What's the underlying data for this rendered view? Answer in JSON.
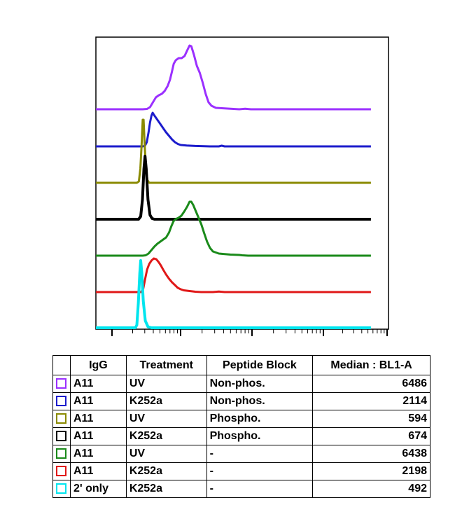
{
  "chart_data": {
    "type": "line",
    "title": "",
    "xlabel": "",
    "ylabel": "",
    "grid": false,
    "x_axis_scale": "log",
    "series": [
      {
        "color": "#9b30ff",
        "lw": 3,
        "points": [
          [
            -4,
            0
          ],
          [
            12,
            0
          ],
          [
            13.5,
            0.5
          ],
          [
            14.5,
            3
          ],
          [
            15.5,
            10
          ],
          [
            16.5,
            17
          ],
          [
            17.5,
            20
          ],
          [
            18.5,
            22
          ],
          [
            19.5,
            26
          ],
          [
            20.5,
            33
          ],
          [
            21.3,
            42
          ],
          [
            22,
            54
          ],
          [
            22.6,
            65
          ],
          [
            23.3,
            70
          ],
          [
            24.3,
            73
          ],
          [
            25.3,
            73
          ],
          [
            26.3,
            76
          ],
          [
            27.2,
            84
          ],
          [
            28,
            91
          ],
          [
            28.6,
            90
          ],
          [
            29.5,
            78
          ],
          [
            30.5,
            62
          ],
          [
            31.5,
            52
          ],
          [
            32.5,
            38
          ],
          [
            33.5,
            22
          ],
          [
            34.5,
            10
          ],
          [
            35.5,
            5
          ],
          [
            37,
            2
          ],
          [
            41,
            1
          ],
          [
            45,
            0
          ],
          [
            47,
            0.8
          ],
          [
            49,
            0
          ],
          [
            90,
            0
          ]
        ]
      },
      {
        "color": "#1c1ccc",
        "lw": 3,
        "points": [
          [
            -4,
            0
          ],
          [
            12,
            0
          ],
          [
            12.8,
            1
          ],
          [
            13.4,
            6
          ],
          [
            14,
            20
          ],
          [
            14.5,
            34
          ],
          [
            15,
            44
          ],
          [
            15.4,
            48
          ],
          [
            16,
            44
          ],
          [
            17,
            38
          ],
          [
            18,
            32
          ],
          [
            19,
            26
          ],
          [
            20,
            20
          ],
          [
            21,
            15
          ],
          [
            22,
            10
          ],
          [
            23,
            6
          ],
          [
            24,
            3.5
          ],
          [
            25,
            2
          ],
          [
            27,
            1.2
          ],
          [
            30,
            0.6
          ],
          [
            33,
            0.3
          ],
          [
            35,
            0
          ],
          [
            38,
            0
          ],
          [
            39,
            1
          ],
          [
            40,
            0
          ],
          [
            90,
            0
          ]
        ]
      },
      {
        "color": "#8a8a00",
        "lw": 3,
        "points": [
          [
            -4,
            0
          ],
          [
            10,
            0
          ],
          [
            10.7,
            2
          ],
          [
            11.2,
            20
          ],
          [
            11.6,
            52
          ],
          [
            12,
            90
          ],
          [
            12.3,
            90
          ],
          [
            12.7,
            52
          ],
          [
            13.1,
            20
          ],
          [
            13.6,
            4
          ],
          [
            14.2,
            0
          ],
          [
            90,
            0
          ]
        ]
      },
      {
        "color": "#000000",
        "lw": 4,
        "points": [
          [
            -4,
            0
          ],
          [
            10.6,
            0
          ],
          [
            11.3,
            4
          ],
          [
            11.9,
            28
          ],
          [
            12.4,
            72
          ],
          [
            12.8,
            90
          ],
          [
            13.2,
            72
          ],
          [
            13.8,
            28
          ],
          [
            14.5,
            6
          ],
          [
            15.2,
            1
          ],
          [
            16,
            0
          ],
          [
            90,
            0
          ]
        ]
      },
      {
        "color": "#1a8a1a",
        "lw": 3,
        "points": [
          [
            -4,
            0
          ],
          [
            12,
            0
          ],
          [
            13,
            0.5
          ],
          [
            14,
            3
          ],
          [
            15,
            8
          ],
          [
            16,
            13
          ],
          [
            17,
            17
          ],
          [
            18,
            20
          ],
          [
            19,
            23
          ],
          [
            20,
            26
          ],
          [
            21,
            33
          ],
          [
            21.8,
            42
          ],
          [
            22.5,
            49
          ],
          [
            23.2,
            52
          ],
          [
            24.2,
            54
          ],
          [
            25.2,
            57
          ],
          [
            26.2,
            63
          ],
          [
            27.2,
            70
          ],
          [
            28,
            77
          ],
          [
            28.6,
            77
          ],
          [
            29.3,
            72
          ],
          [
            30,
            65
          ],
          [
            31,
            55
          ],
          [
            32,
            45
          ],
          [
            33,
            32
          ],
          [
            34,
            20
          ],
          [
            35,
            11
          ],
          [
            36,
            6
          ],
          [
            38,
            3
          ],
          [
            42,
            1.5
          ],
          [
            45,
            1
          ],
          [
            46,
            0.5
          ],
          [
            48,
            0
          ],
          [
            90,
            0
          ]
        ]
      },
      {
        "color": "#e01818",
        "lw": 3,
        "points": [
          [
            -4,
            0
          ],
          [
            11.5,
            0
          ],
          [
            12.2,
            5
          ],
          [
            12.8,
            18
          ],
          [
            13.5,
            32
          ],
          [
            14.2,
            40
          ],
          [
            15,
            45
          ],
          [
            15.8,
            48
          ],
          [
            16.6,
            47
          ],
          [
            17.4,
            43
          ],
          [
            18.2,
            38
          ],
          [
            19,
            32
          ],
          [
            20,
            25
          ],
          [
            21,
            19
          ],
          [
            22,
            14
          ],
          [
            23,
            10
          ],
          [
            24,
            6
          ],
          [
            25,
            4
          ],
          [
            26,
            2.5
          ],
          [
            28,
            1.5
          ],
          [
            30,
            0.5
          ],
          [
            32,
            0
          ],
          [
            36,
            0
          ],
          [
            38,
            0.8
          ],
          [
            40,
            0
          ],
          [
            90,
            0
          ]
        ]
      },
      {
        "color": "#00e5ee",
        "lw": 4,
        "points": [
          [
            -4,
            0
          ],
          [
            9.5,
            0
          ],
          [
            10,
            4
          ],
          [
            10.5,
            35
          ],
          [
            11,
            78
          ],
          [
            11.3,
            96
          ],
          [
            11.7,
            78
          ],
          [
            12.2,
            38
          ],
          [
            12.9,
            10
          ],
          [
            13.8,
            1.5
          ],
          [
            15,
            0
          ],
          [
            90,
            0
          ]
        ]
      }
    ]
  },
  "legend_table": {
    "headers": [
      "IgG",
      "Treatment",
      "Peptide Block",
      "Median : BL1-A"
    ],
    "rows": [
      {
        "swatch_color": "#9b30ff",
        "igg": "A11",
        "treatment": "UV",
        "peptide_block": "Non-phos.",
        "median": "6486"
      },
      {
        "swatch_color": "#1c1ccc",
        "igg": "A11",
        "treatment": "K252a",
        "peptide_block": "Non-phos.",
        "median": "2114"
      },
      {
        "swatch_color": "#8a8a00",
        "igg": "A11",
        "treatment": "UV",
        "peptide_block": "Phospho.",
        "median": "594"
      },
      {
        "swatch_color": "#000000",
        "igg": "A11",
        "treatment": "K252a",
        "peptide_block": "Phospho.",
        "median": "674"
      },
      {
        "swatch_color": "#1a8a1a",
        "igg": "A11",
        "treatment": "UV",
        "peptide_block": "-",
        "median": "6438"
      },
      {
        "swatch_color": "#e01818",
        "igg": "A11",
        "treatment": "K252a",
        "peptide_block": "-",
        "median": "2198"
      },
      {
        "swatch_color": "#00e5ee",
        "igg": "2' only",
        "treatment": "K252a",
        "peptide_block": "-",
        "median": "492"
      }
    ]
  }
}
